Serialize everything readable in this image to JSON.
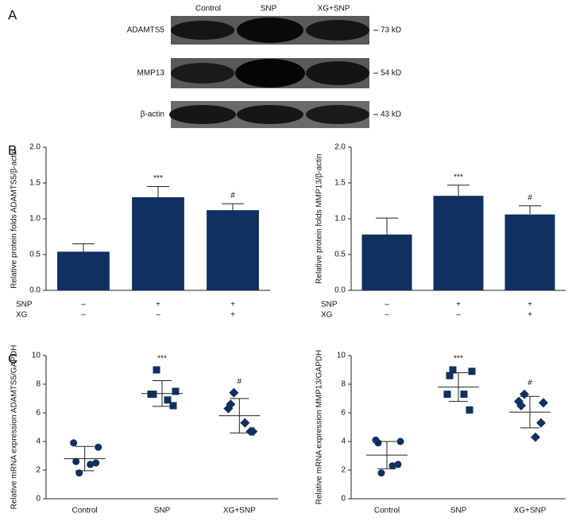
{
  "panels": {
    "a": "A",
    "b": "B",
    "c": "C"
  },
  "blot": {
    "columns": [
      "Control",
      "SNP",
      "XG+SNP"
    ],
    "rows": [
      {
        "protein": "ADAMTS5",
        "size": "73 kD"
      },
      {
        "protein": "MMP13",
        "size": "54 kD"
      },
      {
        "protein": "β-actin",
        "size": "43 kD"
      }
    ]
  },
  "chart_data": [
    {
      "type": "bar",
      "y_label": "Relative protein folds ADAMTS5/β-actin",
      "color": "#0f3060",
      "values": [
        0.54,
        1.3,
        1.12
      ],
      "errors": [
        0.11,
        0.15,
        0.09
      ],
      "bar_labels": [
        null,
        "***",
        "#"
      ],
      "conditions": [
        {
          "name": "SNP",
          "signs": [
            "–",
            "+",
            "+"
          ]
        },
        {
          "name": "XG",
          "signs": [
            "–",
            "–",
            "+"
          ]
        }
      ],
      "ylim": [
        0,
        2
      ],
      "yticks": [
        {
          "value": 0,
          "label": "0.0"
        },
        {
          "value": 0.5,
          "label": "0.5"
        },
        {
          "value": 1,
          "label": "1.0"
        },
        {
          "value": 1.5,
          "label": "1.5"
        },
        {
          "value": 2,
          "label": "2.0"
        }
      ]
    },
    {
      "type": "bar",
      "y_label": "Relative protein folds MMP13/β-actin",
      "color": "#0f3060",
      "values": [
        0.78,
        1.32,
        1.06
      ],
      "errors": [
        0.23,
        0.15,
        0.12
      ],
      "bar_labels": [
        null,
        "***",
        "#"
      ],
      "conditions": [
        {
          "name": "SNP",
          "signs": [
            "–",
            "+",
            "+"
          ]
        },
        {
          "name": "XG",
          "signs": [
            "–",
            "–",
            "+"
          ]
        }
      ],
      "ylim": [
        0,
        2
      ],
      "yticks": [
        {
          "value": 0,
          "label": "0.0"
        },
        {
          "value": 0.5,
          "label": "0.5"
        },
        {
          "value": 1,
          "label": "1.0"
        },
        {
          "value": 1.5,
          "label": "1.5"
        },
        {
          "value": 2,
          "label": "2.0"
        }
      ]
    },
    {
      "type": "dot",
      "y_label": "Relative mRNA expression ADAMTS5/GAPDH",
      "color": "#0f3060",
      "categories": [
        "Control",
        "SNP",
        "XG+SNP"
      ],
      "groups": [
        {
          "marker": "circle",
          "values": [
            3.9,
            2.5,
            1.8,
            2.4,
            2.6,
            3.6
          ],
          "mean": 2.8,
          "sd": 0.85,
          "label": null
        },
        {
          "marker": "square",
          "values": [
            7.3,
            6.5,
            9.0,
            6.9,
            7.3,
            7.5
          ],
          "mean": 7.35,
          "sd": 0.9,
          "label": "***"
        },
        {
          "marker": "diamond",
          "values": [
            6.3,
            4.7,
            7.4,
            5.3,
            6.6,
            4.7
          ],
          "mean": 5.8,
          "sd": 1.2,
          "label": "#"
        }
      ],
      "ylim": [
        0,
        10
      ],
      "yticks": [
        0,
        2,
        4,
        6,
        8,
        10
      ]
    },
    {
      "type": "dot",
      "y_label": "Relative mRNA expression MMP13/GAPDH",
      "color": "#0f3060",
      "categories": [
        "Control",
        "SNP",
        "XG+SNP"
      ],
      "groups": [
        {
          "marker": "circle",
          "values": [
            4.1,
            2.4,
            1.8,
            2.3,
            3.9,
            4.0
          ],
          "mean": 3.05,
          "sd": 0.95,
          "label": null
        },
        {
          "marker": "square",
          "values": [
            7.3,
            6.2,
            9.0,
            7.3,
            8.6,
            8.9
          ],
          "mean": 7.8,
          "sd": 1.0,
          "label": "***"
        },
        {
          "marker": "diamond",
          "values": [
            6.8,
            5.3,
            7.3,
            4.3,
            6.5,
            6.7
          ],
          "mean": 6.05,
          "sd": 1.1,
          "label": "#"
        }
      ],
      "ylim": [
        0,
        10
      ],
      "yticks": [
        0,
        2,
        4,
        6,
        8,
        10
      ]
    }
  ]
}
